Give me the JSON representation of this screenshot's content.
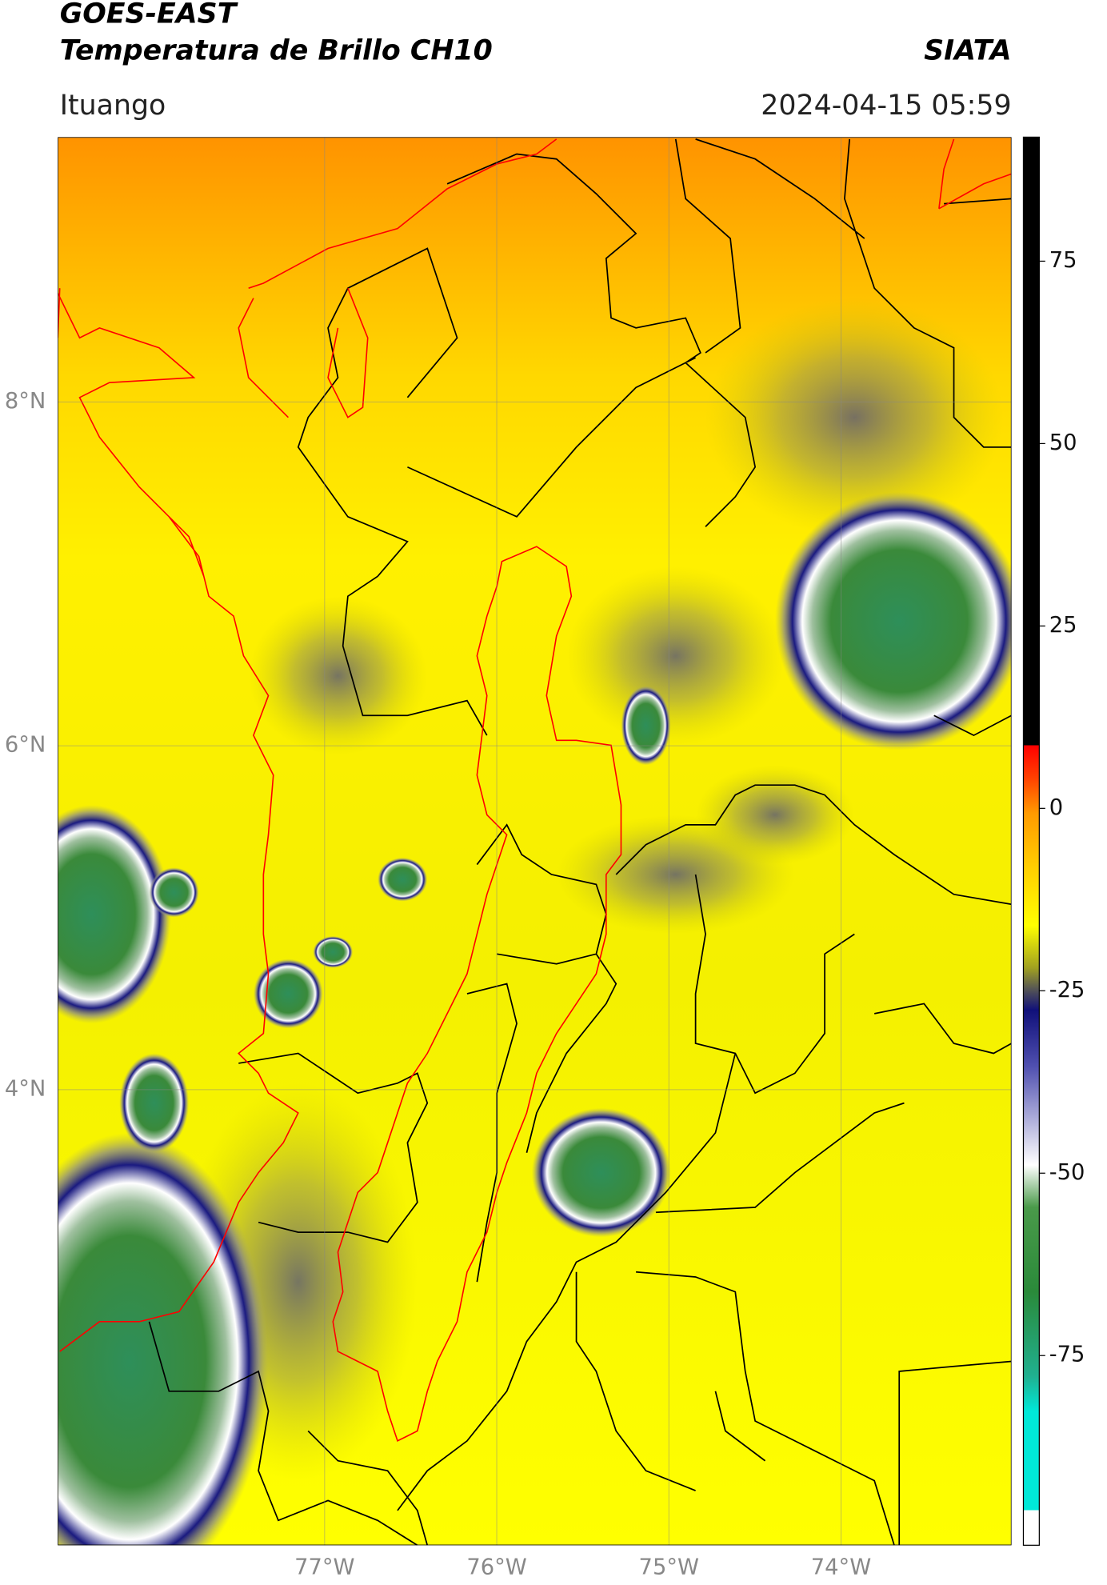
{
  "header": {
    "title": "GOES-EAST",
    "subtitle": "Temperatura de Brillo CH10",
    "source": "SIATA",
    "location": "Ituango",
    "datetime": "2024-04-15 05:59"
  },
  "map": {
    "lonlim": [
      -78.55,
      -73.01
    ],
    "latlim": [
      1.35,
      9.54
    ],
    "grid": true,
    "lat_ticks": [
      {
        "value": 8,
        "label": "8°N"
      },
      {
        "value": 6,
        "label": "6°N"
      },
      {
        "value": 4,
        "label": "4°N"
      }
    ],
    "lon_ticks": [
      {
        "value": -77,
        "label": "77°W"
      },
      {
        "value": -76,
        "label": "76°W"
      },
      {
        "value": -75,
        "label": "75°W"
      },
      {
        "value": -74,
        "label": "74°W"
      }
    ]
  },
  "colorbar": {
    "lim": [
      -101,
      92
    ],
    "ticks": [
      75,
      50,
      25,
      0,
      -25,
      -50,
      -75
    ]
  }
}
